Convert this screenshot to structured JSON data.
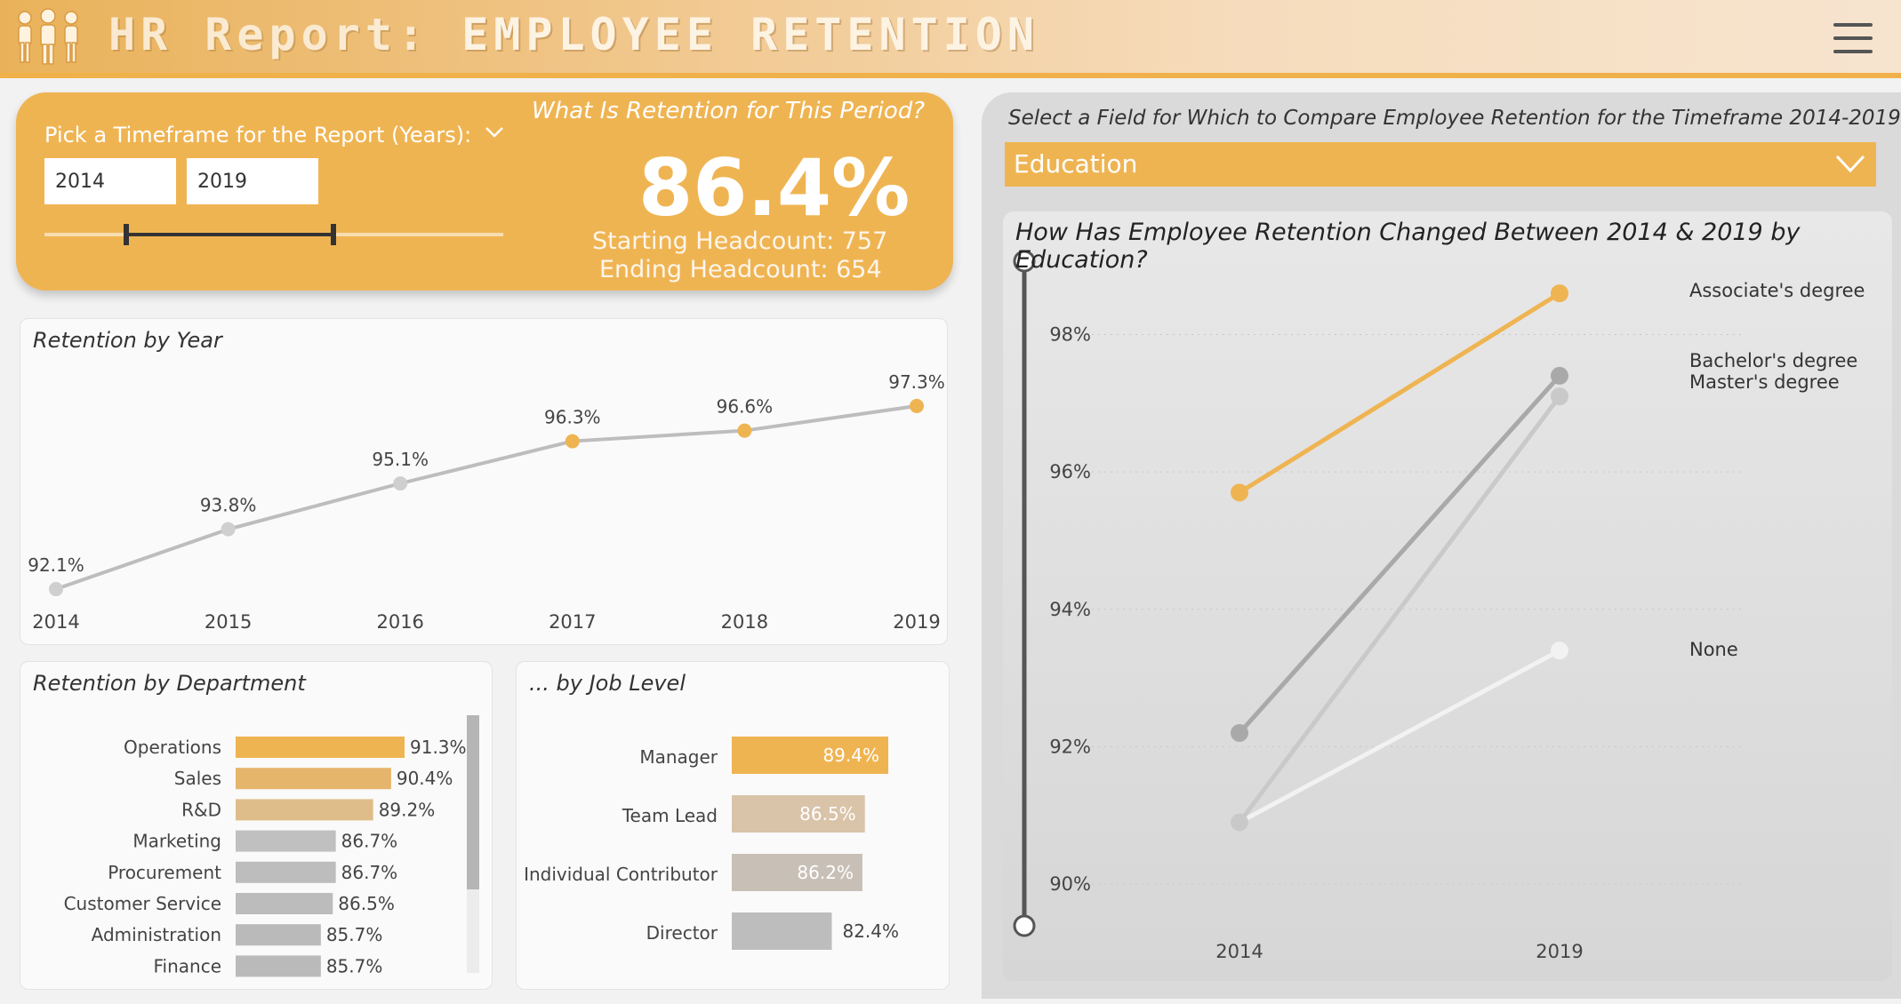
{
  "header": {
    "title_prefix": "HR Report:",
    "title_main": "EMPLOYEE RETENTION",
    "logo_icon": "people-group-icon",
    "menu_icon": "hamburger-menu-icon"
  },
  "period": {
    "pick_label": "Pick a Timeframe for the Report (Years):",
    "start_year": "2014",
    "end_year": "2019",
    "question": "What Is Retention for This Period?",
    "retention": "86.4%",
    "starting_headcount": "Starting Headcount: 757",
    "ending_headcount": "Ending Headcount: 654"
  },
  "retention_by_year": {
    "title": "Retention by Year",
    "chart_data": {
      "type": "line",
      "categories": [
        "2014",
        "2015",
        "2016",
        "2017",
        "2018",
        "2019"
      ],
      "values": [
        92.1,
        93.8,
        95.1,
        96.3,
        96.6,
        97.3
      ],
      "labels": [
        "92.1%",
        "93.8%",
        "95.1%",
        "96.3%",
        "96.6%",
        "97.3%"
      ],
      "ylim": [
        92,
        97.5
      ]
    }
  },
  "retention_by_department": {
    "title": "Retention by Department",
    "chart_data": {
      "type": "bar",
      "categories": [
        "Operations",
        "Sales",
        "R&D",
        "Marketing",
        "Procurement",
        "Customer Service",
        "Administration",
        "Finance"
      ],
      "values": [
        91.3,
        90.4,
        89.2,
        86.7,
        86.7,
        86.5,
        85.7,
        85.7
      ],
      "labels": [
        "91.3%",
        "90.4%",
        "89.2%",
        "86.7%",
        "86.7%",
        "86.5%",
        "85.7%",
        "85.7%"
      ],
      "colors": [
        "#efb452",
        "#e5b56c",
        "#dfbd8a",
        "#c0c0c0",
        "#bdbdbd",
        "#bcbcbc",
        "#bababa",
        "#bababa"
      ]
    }
  },
  "retention_by_job_level": {
    "title": "... by Job Level",
    "chart_data": {
      "type": "bar",
      "categories": [
        "Manager",
        "Team Lead",
        "Individual Contributor",
        "Director"
      ],
      "values": [
        89.4,
        86.5,
        86.2,
        82.4
      ],
      "labels": [
        "89.4%",
        "86.5%",
        "86.2%",
        "82.4%"
      ],
      "colors": [
        "#efb452",
        "#d9c3a9",
        "#c8c0b7",
        "#bdbdbd"
      ]
    }
  },
  "compare": {
    "instruction": "Select a Field for Which to Compare Employee Retention for the Timeframe 2014-2019",
    "field": "Education",
    "chart_title": "How Has Employee Retention Changed Between 2014 & 2019 by Education?",
    "chart_data": {
      "type": "line",
      "x": [
        "2014",
        "2019"
      ],
      "y_ticks": [
        "90%",
        "92%",
        "94%",
        "96%",
        "98%"
      ],
      "ylim": [
        89.6,
        99.3
      ],
      "series": [
        {
          "name": "Associate's degree",
          "values": [
            95.7,
            98.6
          ],
          "color": "#efb452"
        },
        {
          "name": "Bachelor's degree",
          "values": [
            92.2,
            97.4
          ],
          "color": "#a9a9a9"
        },
        {
          "name": "Master's degree",
          "values": [
            90.9,
            97.1
          ],
          "color": "#c9c9c9"
        },
        {
          "name": "None",
          "values": [
            90.9,
            93.4
          ],
          "color": "#f2f2f2"
        }
      ]
    }
  }
}
